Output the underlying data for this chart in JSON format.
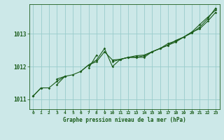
{
  "title": "Graphe pression niveau de la mer (hPa)",
  "bg_color": "#cce8e8",
  "grid_color": "#99cccc",
  "line_color": "#1a5c1a",
  "xlim": [
    -0.5,
    23.5
  ],
  "ylim": [
    1010.7,
    1013.9
  ],
  "yticks": [
    1011,
    1012,
    1013
  ],
  "xticks": [
    0,
    1,
    2,
    3,
    4,
    5,
    6,
    7,
    8,
    9,
    10,
    11,
    12,
    13,
    14,
    15,
    16,
    17,
    18,
    19,
    20,
    21,
    22,
    23
  ],
  "series1": [
    1011.1,
    1011.35,
    1011.35,
    1011.55,
    1011.7,
    1011.75,
    1011.85,
    1012.05,
    1012.15,
    1012.45,
    1012.2,
    1012.22,
    1012.28,
    1012.33,
    1012.35,
    1012.45,
    1012.55,
    1012.65,
    1012.75,
    1012.9,
    1013.05,
    1013.15,
    1013.38,
    1013.65
  ],
  "series2": [
    1011.1,
    1011.35,
    null,
    1011.45,
    1011.7,
    null,
    1011.85,
    1012.05,
    1012.2,
    1012.55,
    1012.0,
    1012.22,
    1012.28,
    1012.28,
    1012.28,
    1012.45,
    1012.55,
    1012.65,
    1012.8,
    1012.9,
    1013.05,
    1013.28,
    1013.5,
    1013.72
  ],
  "series3": [
    1011.1,
    null,
    null,
    1011.62,
    1011.7,
    null,
    null,
    1011.95,
    1012.35,
    null,
    1012.15,
    1012.22,
    1012.28,
    1012.28,
    1012.33,
    1012.45,
    1012.55,
    1012.7,
    1012.78,
    1012.9,
    1013.02,
    1013.2,
    1013.45,
    1013.78
  ]
}
